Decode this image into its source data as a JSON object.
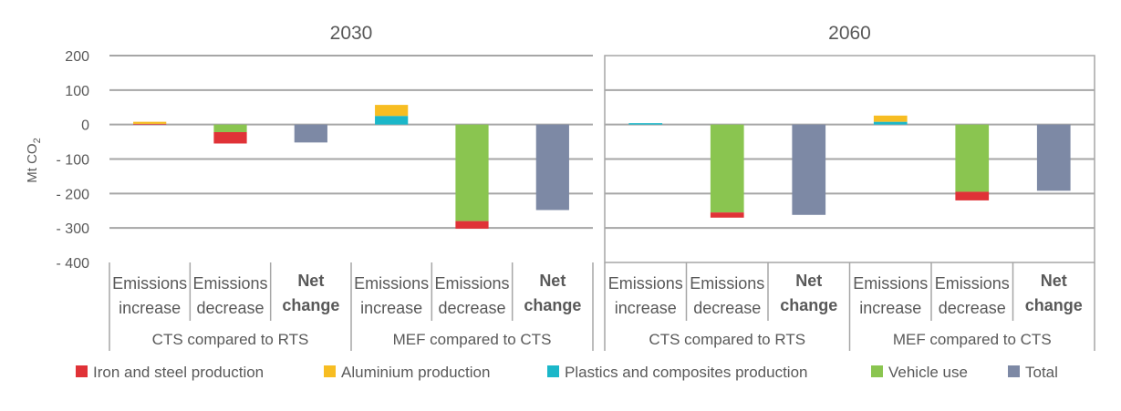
{
  "chart_data": {
    "type": "bar",
    "stacked": true,
    "ylabel": "Mt CO2",
    "ylim": [
      -400,
      200
    ],
    "yticks": [
      200,
      100,
      0,
      -100,
      -200,
      -300,
      -400
    ],
    "ytick_labels": [
      "200",
      "100",
      "0",
      "- 100",
      "- 200",
      "- 300",
      "- 400"
    ],
    "grid": true,
    "legend_position": "bottom",
    "series_styles": [
      {
        "key": "iron",
        "name": "Iron and steel production",
        "color": "#e03237"
      },
      {
        "key": "aluminium",
        "name": "Aluminium production",
        "color": "#f7bd22"
      },
      {
        "key": "plastics",
        "name": "Plastics and composites production",
        "color": "#1bb7c9"
      },
      {
        "key": "vehicle",
        "name": "Vehicle use",
        "color": "#8ac550"
      },
      {
        "key": "total",
        "name": "Total",
        "color": "#7d89a5"
      }
    ],
    "panels": [
      {
        "title": "2030",
        "groups": [
          {
            "label": "CTS compared to RTS",
            "categories": [
              {
                "line1": "Emissions",
                "line2": "increase",
                "bold": false,
                "stack": [
                  {
                    "series": "iron",
                    "value": 2
                  },
                  {
                    "series": "aluminium",
                    "value": 6
                  }
                ]
              },
              {
                "line1": "Emissions",
                "line2": "decrease",
                "bold": false,
                "stack": [
                  {
                    "series": "vehicle",
                    "value": -22
                  },
                  {
                    "series": "iron",
                    "value": -33
                  }
                ]
              },
              {
                "line1": "Net",
                "line2": "change",
                "bold": true,
                "stack": [
                  {
                    "series": "total",
                    "value": -52
                  }
                ]
              }
            ]
          },
          {
            "label": "MEF compared to CTS",
            "categories": [
              {
                "line1": "Emissions",
                "line2": "increase",
                "bold": false,
                "stack": [
                  {
                    "series": "plastics",
                    "value": 25
                  },
                  {
                    "series": "aluminium",
                    "value": 32
                  }
                ]
              },
              {
                "line1": "Emissions",
                "line2": "decrease",
                "bold": false,
                "stack": [
                  {
                    "series": "vehicle",
                    "value": -280
                  },
                  {
                    "series": "iron",
                    "value": -22
                  }
                ]
              },
              {
                "line1": "Net",
                "line2": "change",
                "bold": true,
                "stack": [
                  {
                    "series": "total",
                    "value": -248
                  }
                ]
              }
            ]
          }
        ]
      },
      {
        "title": "2060",
        "groups": [
          {
            "label": "CTS compared to RTS",
            "categories": [
              {
                "line1": "Emissions",
                "line2": "increase",
                "bold": false,
                "stack": [
                  {
                    "series": "plastics",
                    "value": 4
                  }
                ]
              },
              {
                "line1": "Emissions",
                "line2": "decrease",
                "bold": false,
                "stack": [
                  {
                    "series": "vehicle",
                    "value": -255
                  },
                  {
                    "series": "iron",
                    "value": -15
                  }
                ]
              },
              {
                "line1": "Net",
                "line2": "change",
                "bold": true,
                "stack": [
                  {
                    "series": "total",
                    "value": -262
                  }
                ]
              }
            ]
          },
          {
            "label": "MEF compared to CTS",
            "categories": [
              {
                "line1": "Emissions",
                "line2": "increase",
                "bold": false,
                "stack": [
                  {
                    "series": "plastics",
                    "value": 8
                  },
                  {
                    "series": "aluminium",
                    "value": 18
                  }
                ]
              },
              {
                "line1": "Emissions",
                "line2": "decrease",
                "bold": false,
                "stack": [
                  {
                    "series": "vehicle",
                    "value": -195
                  },
                  {
                    "series": "iron",
                    "value": -25
                  }
                ]
              },
              {
                "line1": "Net",
                "line2": "change",
                "bold": true,
                "stack": [
                  {
                    "series": "total",
                    "value": -192
                  }
                ]
              }
            ]
          }
        ]
      }
    ]
  }
}
